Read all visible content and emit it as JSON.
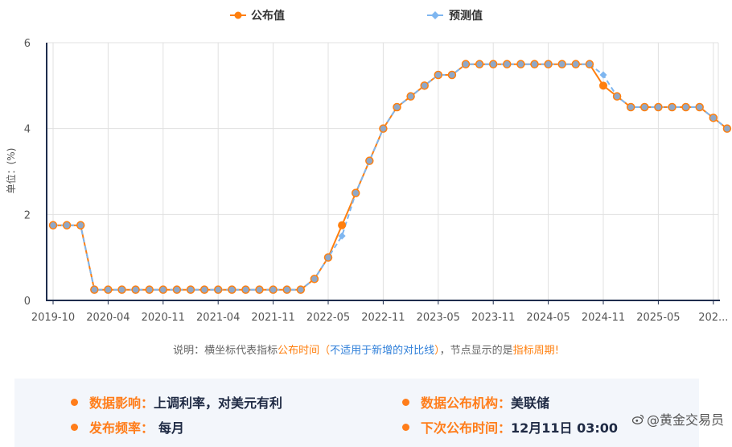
{
  "legend": {
    "published_label": "公布值",
    "forecast_label": "预测值"
  },
  "colors": {
    "published": "#ff7f0e",
    "forecast": "#7eb6f0",
    "marker_fill": "#8fa8c8",
    "axis": "#1f2d4d",
    "grid": "#e0e0e0"
  },
  "chart_data": {
    "type": "line",
    "ylabel": "单位：(%)",
    "ylim": [
      0,
      6
    ],
    "yticks": [
      "0",
      "2",
      "4",
      "6"
    ],
    "xticks": [
      "2019-10",
      "2020-04",
      "2020-11",
      "2021-04",
      "2021-11",
      "2022-05",
      "2022-11",
      "2023-05",
      "2023-11",
      "2024-05",
      "2024-11",
      "2025-05",
      "202..."
    ],
    "grid": true,
    "legend_position": "top",
    "series": [
      {
        "name": "公布值",
        "values": [
          1.75,
          1.75,
          1.75,
          0.25,
          0.25,
          0.25,
          0.25,
          0.25,
          0.25,
          0.25,
          0.25,
          0.25,
          0.25,
          0.25,
          0.25,
          0.25,
          0.25,
          0.25,
          0.25,
          0.5,
          1.0,
          1.75,
          2.5,
          3.25,
          4.0,
          4.5,
          4.75,
          5.0,
          5.25,
          5.25,
          5.5,
          5.5,
          5.5,
          5.5,
          5.5,
          5.5,
          5.5,
          5.5,
          5.5,
          5.5,
          5.0,
          4.75,
          4.5,
          4.5,
          4.5,
          4.5,
          4.5,
          4.5,
          4.25,
          4.0
        ]
      },
      {
        "name": "预测值",
        "values": [
          1.75,
          1.75,
          1.75,
          0.25,
          0.25,
          0.25,
          0.25,
          0.25,
          0.25,
          0.25,
          0.25,
          0.25,
          0.25,
          0.25,
          0.25,
          0.25,
          0.25,
          0.25,
          0.25,
          0.5,
          1.0,
          1.5,
          2.5,
          3.25,
          4.0,
          4.5,
          4.75,
          5.0,
          5.25,
          5.25,
          5.5,
          5.5,
          5.5,
          5.5,
          5.5,
          5.5,
          5.5,
          5.5,
          5.5,
          5.5,
          5.25,
          4.75,
          4.5,
          4.5,
          4.5,
          4.5,
          4.5,
          4.5,
          4.25,
          4.0
        ]
      }
    ]
  },
  "note": {
    "prefix": "说明：横坐标代表指标",
    "highlight1": "公布时间",
    "paren_open": "（",
    "blue_text": "不适用于新增的对比线",
    "paren_close": "）",
    "middle": "，节点显示的是",
    "highlight2": "指标周期",
    "suffix": "!"
  },
  "info": {
    "impact_label": "数据影响：",
    "impact_value": "上调利率，对美元有利",
    "agency_label": "数据公布机构：",
    "agency_value": "美联储",
    "frequency_label": "发布频率：",
    "frequency_value": "每月",
    "next_label": "下次公布时间：",
    "next_value": "12月11日 03:00"
  },
  "watermark": {
    "icon": "weibo-icon",
    "text": "@黄金交易员"
  }
}
